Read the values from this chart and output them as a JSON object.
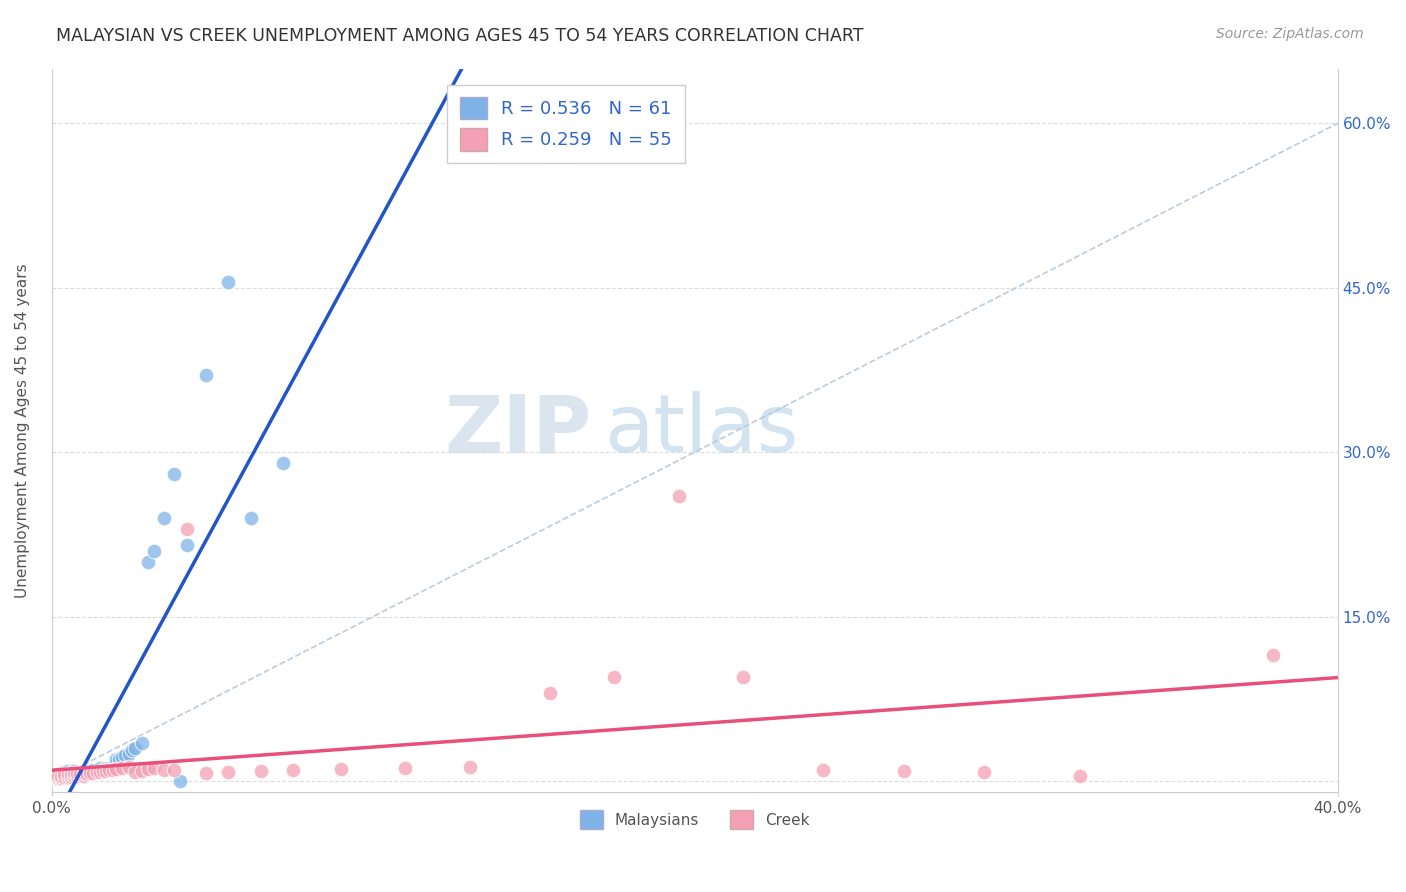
{
  "title": "MALAYSIAN VS CREEK UNEMPLOYMENT AMONG AGES 45 TO 54 YEARS CORRELATION CHART",
  "source": "Source: ZipAtlas.com",
  "ylabel": "Unemployment Among Ages 45 to 54 years",
  "xlim": [
    0.0,
    0.4
  ],
  "ylim": [
    -0.01,
    0.65
  ],
  "xtick_positions": [
    0.0,
    0.4
  ],
  "xtick_labels": [
    "0.0%",
    "40.0%"
  ],
  "ytick_positions": [
    0.0,
    0.15,
    0.3,
    0.45,
    0.6
  ],
  "ytick_labels_right": [
    "",
    "15.0%",
    "30.0%",
    "45.0%",
    "60.0%"
  ],
  "malaysian_color": "#7fb3e8",
  "creek_color": "#f4a0b5",
  "malaysian_line_color": "#2255cc",
  "creek_line_color": "#e8507a",
  "ref_line_color": "#bbccdd",
  "grid_color": "#dddddd",
  "R_malaysian": 0.536,
  "N_malaysian": 61,
  "R_creek": 0.259,
  "N_creek": 55,
  "watermark_zip": "ZIP",
  "watermark_atlas": "atlas",
  "mal_x": [
    0.0,
    0.001,
    0.002,
    0.002,
    0.002,
    0.003,
    0.003,
    0.004,
    0.004,
    0.004,
    0.005,
    0.005,
    0.005,
    0.005,
    0.006,
    0.006,
    0.006,
    0.007,
    0.007,
    0.007,
    0.007,
    0.008,
    0.008,
    0.008,
    0.009,
    0.009,
    0.01,
    0.01,
    0.01,
    0.011,
    0.011,
    0.012,
    0.012,
    0.013,
    0.013,
    0.014,
    0.015,
    0.015,
    0.016,
    0.017,
    0.018,
    0.019,
    0.02,
    0.02,
    0.021,
    0.022,
    0.023,
    0.024,
    0.025,
    0.026,
    0.028,
    0.03,
    0.032,
    0.035,
    0.038,
    0.04,
    0.042,
    0.048,
    0.055,
    0.062,
    0.072
  ],
  "mal_y": [
    0.003,
    0.004,
    0.003,
    0.005,
    0.006,
    0.004,
    0.005,
    0.004,
    0.006,
    0.008,
    0.003,
    0.005,
    0.007,
    0.009,
    0.004,
    0.006,
    0.008,
    0.004,
    0.006,
    0.007,
    0.009,
    0.004,
    0.005,
    0.007,
    0.005,
    0.007,
    0.005,
    0.007,
    0.009,
    0.006,
    0.008,
    0.006,
    0.009,
    0.007,
    0.01,
    0.008,
    0.009,
    0.012,
    0.01,
    0.012,
    0.012,
    0.014,
    0.016,
    0.02,
    0.02,
    0.022,
    0.024,
    0.025,
    0.028,
    0.03,
    0.035,
    0.2,
    0.21,
    0.24,
    0.28,
    0.0,
    0.215,
    0.37,
    0.455,
    0.24,
    0.29
  ],
  "creek_x": [
    0.0,
    0.001,
    0.001,
    0.002,
    0.002,
    0.003,
    0.003,
    0.004,
    0.004,
    0.005,
    0.005,
    0.006,
    0.006,
    0.007,
    0.007,
    0.008,
    0.008,
    0.009,
    0.01,
    0.01,
    0.011,
    0.012,
    0.013,
    0.014,
    0.015,
    0.016,
    0.017,
    0.018,
    0.019,
    0.02,
    0.022,
    0.024,
    0.026,
    0.028,
    0.03,
    0.032,
    0.035,
    0.038,
    0.042,
    0.048,
    0.055,
    0.065,
    0.075,
    0.09,
    0.11,
    0.13,
    0.155,
    0.175,
    0.195,
    0.215,
    0.24,
    0.265,
    0.29,
    0.32,
    0.38
  ],
  "creek_y": [
    0.003,
    0.004,
    0.005,
    0.003,
    0.005,
    0.003,
    0.005,
    0.004,
    0.006,
    0.004,
    0.006,
    0.004,
    0.006,
    0.005,
    0.007,
    0.005,
    0.007,
    0.006,
    0.005,
    0.007,
    0.006,
    0.007,
    0.007,
    0.008,
    0.008,
    0.009,
    0.009,
    0.01,
    0.01,
    0.011,
    0.012,
    0.013,
    0.008,
    0.009,
    0.011,
    0.012,
    0.01,
    0.01,
    0.23,
    0.007,
    0.008,
    0.009,
    0.01,
    0.011,
    0.012,
    0.013,
    0.08,
    0.095,
    0.26,
    0.095,
    0.01,
    0.009,
    0.008,
    0.005,
    0.115
  ]
}
